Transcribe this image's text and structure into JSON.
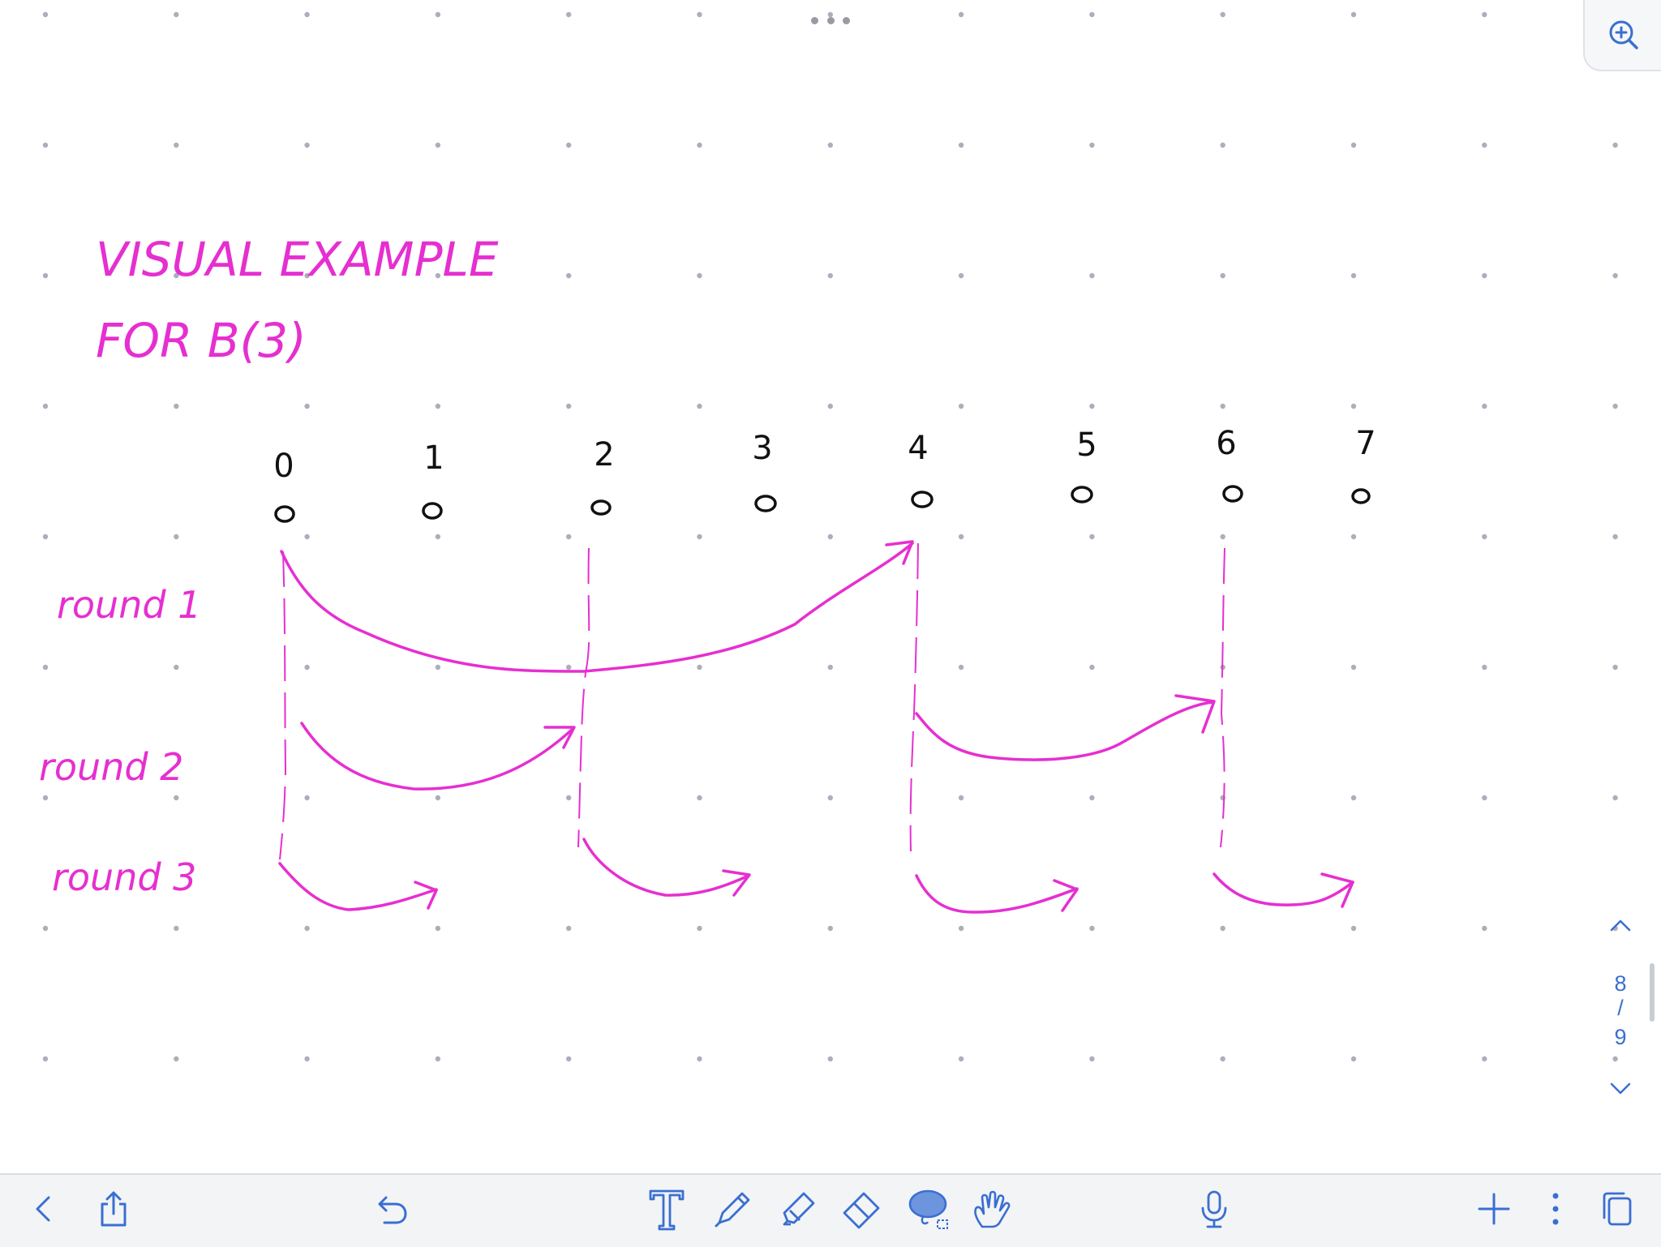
{
  "note": {
    "title_line1": "VISUAL EXAMPLE",
    "title_line2": "FOR B(3)",
    "indices": [
      "0",
      "1",
      "2",
      "3",
      "4",
      "5",
      "6",
      "7"
    ],
    "node_marker": "o",
    "round_labels": [
      "round 1",
      "round 2",
      "round 3"
    ],
    "ink_color": "#e62fd0",
    "pencil_color": "#000000",
    "grid_dot_color": "#a9b0bb"
  },
  "pager": {
    "current_page": "8",
    "separator": "/",
    "total_pages": "9"
  },
  "toolbar": {
    "left": [
      "back-icon",
      "share-icon"
    ],
    "undo": "undo-icon",
    "tools": [
      "text-icon",
      "pen-icon",
      "highlighter-icon",
      "eraser-icon",
      "lasso-icon",
      "hand-icon"
    ],
    "mic": "microphone-icon",
    "right": [
      "add-icon",
      "more-icon",
      "pages-icon"
    ]
  },
  "colors": {
    "accent": "#3a6fd1",
    "toolbar_bg": "#f3f4f6"
  }
}
